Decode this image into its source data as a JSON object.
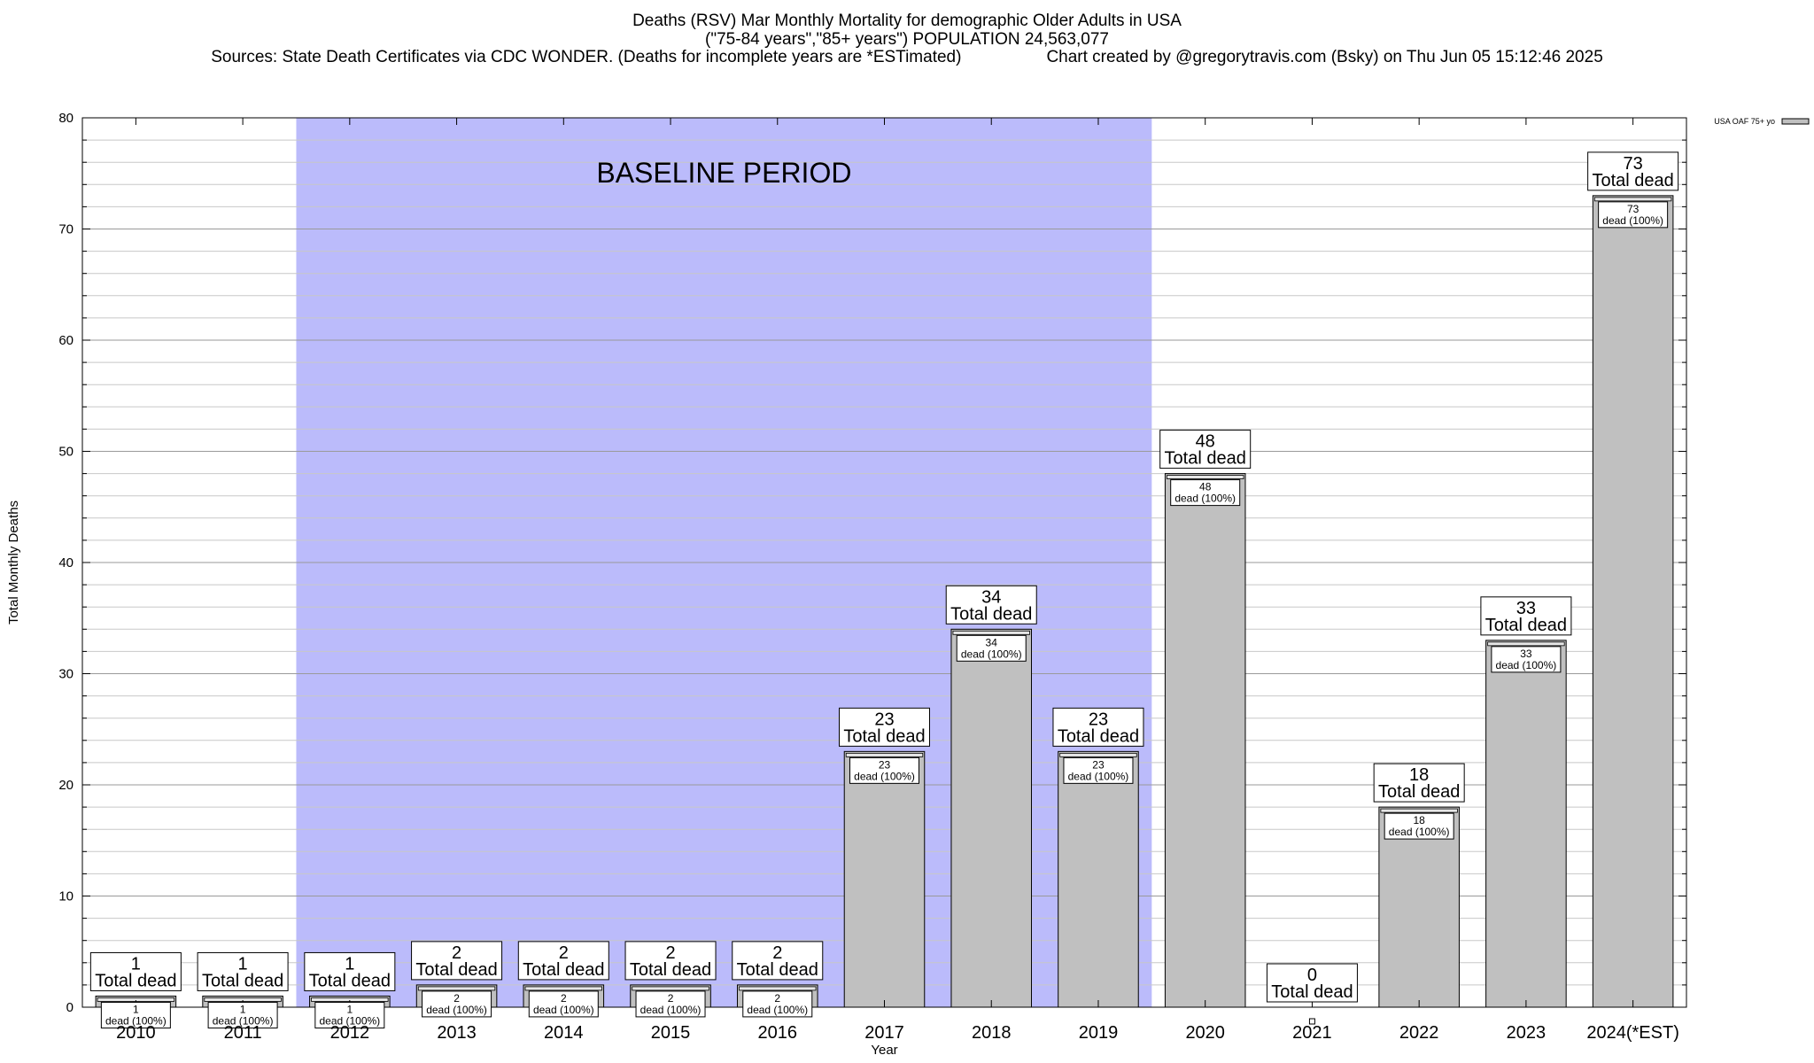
{
  "header": {
    "line1": "Deaths (RSV) Mar Monthly Mortality for demographic Older Adults in USA",
    "line2": "(\"75-84 years\",\"85+ years\") POPULATION 24,563,077",
    "sources": "Sources: State Death Certificates via CDC WONDER. (Deaths for incomplete years are *ESTimated)",
    "credit": "Chart created by @gregorytravis.com (Bsky) on Thu Jun 05 15:12:46 2025"
  },
  "chart_data": {
    "type": "bar",
    "title": "Deaths (RSV) Mar Monthly Mortality for demographic Older Adults in USA",
    "subtitle": "(\"75-84 years\",\"85+ years\") POPULATION 24,563,077",
    "xlabel": "Year",
    "ylabel": "Total Monthly Deaths",
    "ylim": [
      0,
      80
    ],
    "yticks": [
      0,
      10,
      20,
      30,
      40,
      50,
      60,
      70,
      80
    ],
    "minor_grid_step": 2,
    "grid": true,
    "categories": [
      "2010",
      "2011",
      "2012",
      "2013",
      "2014",
      "2015",
      "2016",
      "2017",
      "2018",
      "2019",
      "2020",
      "2021",
      "2022",
      "2023",
      "2024(*EST)"
    ],
    "series": [
      {
        "name": "USA OAF 75+ yo",
        "values": [
          1,
          1,
          1,
          2,
          2,
          2,
          2,
          23,
          34,
          23,
          48,
          0,
          18,
          33,
          73
        ]
      }
    ],
    "total_label": "Total dead",
    "inner_label": "dead (100%)",
    "baseline": {
      "label": "BASELINE PERIOD",
      "from_category": "2012",
      "to_category": "2019",
      "color": "#bbbbfb"
    },
    "legend": {
      "placement": "top-right"
    },
    "colors": {
      "bar_fill": "#c0c0c0",
      "bar_stroke": "#000000",
      "grid": "#c8c8c8"
    }
  }
}
